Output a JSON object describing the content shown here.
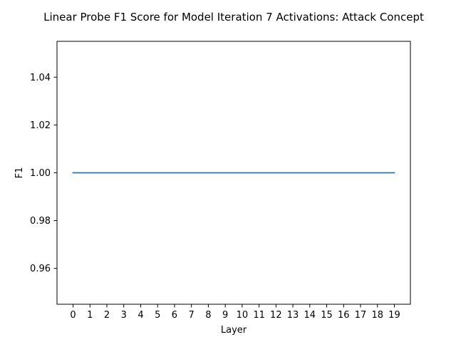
{
  "chart_data": {
    "type": "line",
    "title": "Linear Probe F1 Score for Model Iteration 7 Activations: Attack Concept",
    "xlabel": "Layer",
    "ylabel": "F1",
    "x": [
      0,
      1,
      2,
      3,
      4,
      5,
      6,
      7,
      8,
      9,
      10,
      11,
      12,
      13,
      14,
      15,
      16,
      17,
      18,
      19
    ],
    "series": [
      {
        "values": [
          1.0,
          1.0,
          1.0,
          1.0,
          1.0,
          1.0,
          1.0,
          1.0,
          1.0,
          1.0,
          1.0,
          1.0,
          1.0,
          1.0,
          1.0,
          1.0,
          1.0,
          1.0,
          1.0,
          1.0
        ],
        "color": "#1f77b4"
      }
    ],
    "xlim": [
      -0.95,
      19.95
    ],
    "ylim": [
      0.945,
      1.055
    ],
    "xticks": [
      "0",
      "1",
      "2",
      "3",
      "4",
      "5",
      "6",
      "7",
      "8",
      "9",
      "10",
      "11",
      "12",
      "13",
      "14",
      "15",
      "16",
      "17",
      "18",
      "19"
    ],
    "yticks": [
      0.96,
      0.98,
      1.0,
      1.02,
      1.04
    ],
    "ytick_labels": [
      "0.96",
      "0.98",
      "1.00",
      "1.02",
      "1.04"
    ],
    "grid": false,
    "legend": false
  }
}
